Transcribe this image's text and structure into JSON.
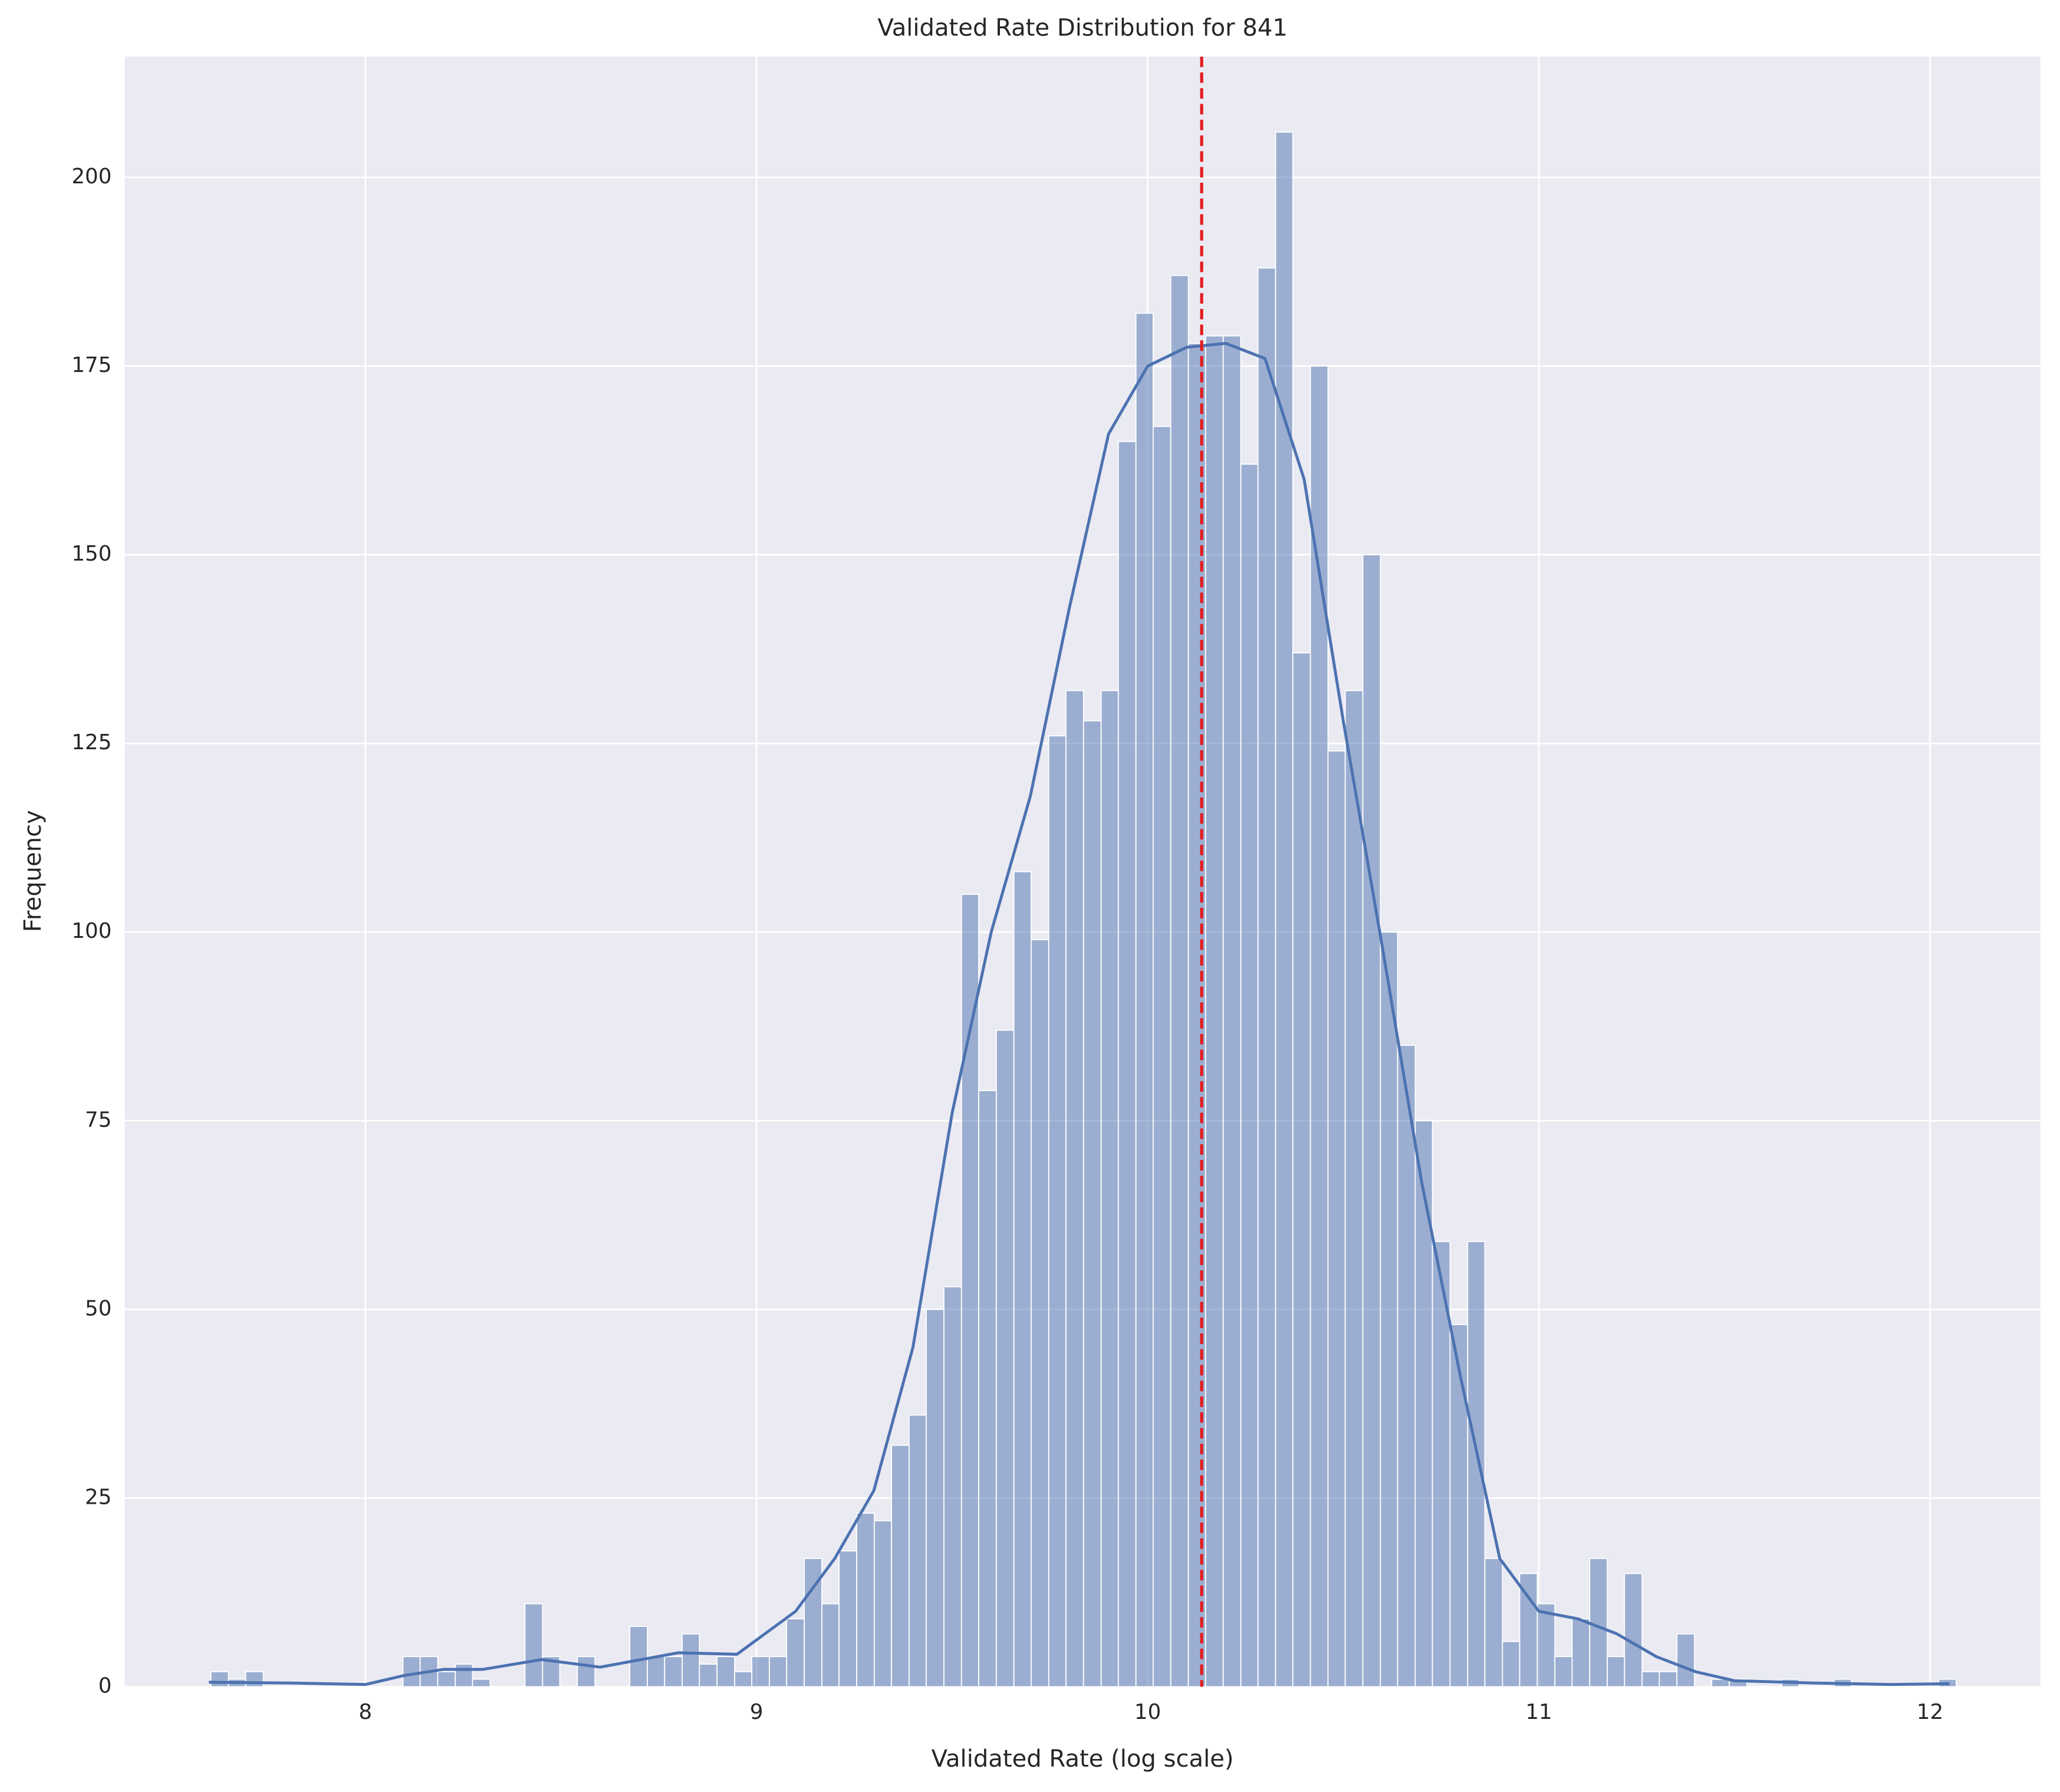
{
  "chart_data": {
    "type": "histogram",
    "title": "Validated Rate Distribution for 841",
    "x_label": "Validated Rate (log scale)",
    "y_label": "Frequency",
    "bins": [
      7.605,
      7.65,
      7.694,
      7.739,
      7.783,
      7.828,
      7.873,
      7.917,
      7.962,
      8.007,
      8.051,
      8.096,
      8.14,
      8.185,
      8.23,
      8.274,
      8.319,
      8.364,
      8.408,
      8.453,
      8.497,
      8.542,
      8.587,
      8.631,
      8.676,
      8.721,
      8.765,
      8.81,
      8.854,
      8.899,
      8.944,
      8.988,
      9.033,
      9.077,
      9.122,
      9.167,
      9.211,
      9.256,
      9.301,
      9.345,
      9.39,
      9.434,
      9.479,
      9.524,
      9.568,
      9.613,
      9.658,
      9.702,
      9.747,
      9.791,
      9.836,
      9.881,
      9.925,
      9.97,
      10.014,
      10.059,
      10.104,
      10.148,
      10.193,
      10.238,
      10.282,
      10.327,
      10.371,
      10.416,
      10.461,
      10.505,
      10.55,
      10.595,
      10.639,
      10.684,
      10.728,
      10.773,
      10.818,
      10.862,
      10.907,
      10.951,
      10.996,
      11.041,
      11.085,
      11.13,
      11.175,
      11.219,
      11.264,
      11.308,
      11.353,
      11.398,
      11.442,
      11.487,
      11.532,
      11.576,
      11.621,
      11.665,
      11.71,
      11.755,
      11.799,
      11.844,
      11.888,
      11.933,
      11.978,
      12.022,
      12.067
    ],
    "counts": [
      2,
      1,
      2,
      0,
      0,
      0,
      0,
      0,
      0,
      0,
      0,
      4,
      4,
      2,
      3,
      1,
      0,
      0,
      11,
      4,
      0,
      4,
      0,
      0,
      8,
      4,
      4,
      7,
      3,
      4,
      2,
      4,
      4,
      9,
      17,
      11,
      18,
      23,
      22,
      32,
      36,
      50,
      53,
      105,
      79,
      87,
      108,
      99,
      126,
      132,
      128,
      132,
      165,
      182,
      167,
      187,
      178,
      179,
      179,
      162,
      188,
      206,
      137,
      175,
      124,
      132,
      150,
      100,
      85,
      75,
      59,
      48,
      59,
      17,
      6,
      15,
      11,
      4,
      9,
      17,
      4,
      15,
      2,
      2,
      7,
      0,
      1,
      1,
      0,
      0,
      1,
      0,
      0,
      1,
      0,
      0,
      0,
      0,
      0,
      1
    ],
    "color": "#4c72b0",
    "kde": {
      "color": "#4c72b0",
      "x": [
        7.6,
        7.8,
        8.0,
        8.1,
        8.2,
        8.3,
        8.45,
        8.6,
        8.8,
        8.95,
        9.1,
        9.2,
        9.3,
        9.4,
        9.5,
        9.6,
        9.7,
        9.8,
        9.9,
        10.0,
        10.1,
        10.2,
        10.3,
        10.4,
        10.5,
        10.6,
        10.7,
        10.8,
        10.9,
        11.0,
        11.1,
        11.2,
        11.3,
        11.4,
        11.5,
        11.7,
        11.9,
        12.05
      ],
      "values": [
        0.6,
        0.5,
        0.3,
        1.5,
        2.3,
        2.3,
        3.6,
        2.6,
        4.5,
        4.3,
        10,
        17,
        26,
        45,
        76,
        100,
        118,
        143,
        166,
        175,
        177.5,
        178,
        176,
        160,
        128,
        98,
        67,
        41,
        17,
        10,
        9,
        7,
        4,
        2,
        0.8,
        0.5,
        0.3,
        0.4
      ]
    },
    "mean_line": {
      "value": 10.138,
      "color": "#e41a1c"
    },
    "xlim": [
      7.385,
      12.282
    ],
    "ylim": [
      0,
      216
    ],
    "xticks": [
      8,
      9,
      10,
      11,
      12
    ],
    "yticks": [
      0,
      25,
      50,
      75,
      100,
      125,
      150,
      175,
      200
    ],
    "grid": true,
    "plot_background": "#eaeaf2"
  }
}
